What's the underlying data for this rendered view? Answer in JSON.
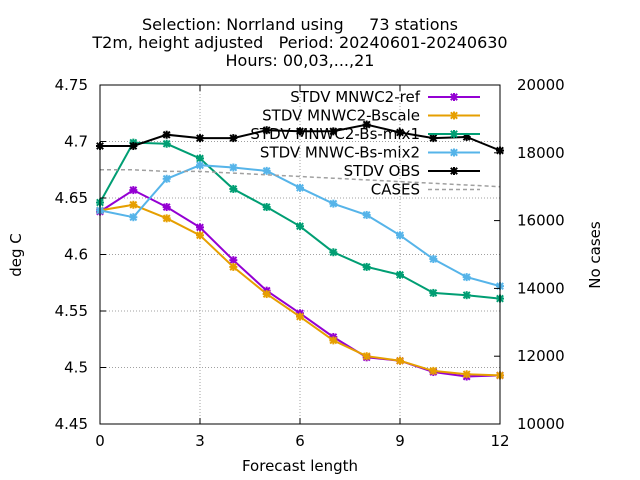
{
  "chart_data": {
    "type": "line",
    "title_lines": [
      "Selection: Norrland using     73 stations",
      "T2m, height adjusted   Period: 20240601-20240630",
      "Hours: 00,03,...,21"
    ],
    "xlabel": "Forecast length",
    "ylabel": "deg C",
    "y2label": "No cases",
    "xlim": [
      0,
      12
    ],
    "ylim": [
      4.45,
      4.75
    ],
    "y2lim": [
      10000,
      20000
    ],
    "x_ticks": [
      0,
      3,
      6,
      9,
      12
    ],
    "y_ticks": [
      4.45,
      4.5,
      4.55,
      4.6,
      4.65,
      4.7,
      4.75
    ],
    "y_tick_labels": [
      "4.45",
      "4.5",
      "4.55",
      "4.6",
      "4.65",
      "4.7",
      "4.75"
    ],
    "y2_ticks": [
      10000,
      12000,
      14000,
      16000,
      18000,
      20000
    ],
    "grid": true,
    "legend_position": "top-right",
    "x": [
      0,
      1,
      2,
      3,
      4,
      5,
      6,
      7,
      8,
      9,
      10,
      11,
      12
    ],
    "series": [
      {
        "name": "STDV MNWC2-ref",
        "color": "#9400d3",
        "axis": "y",
        "values": [
          4.638,
          4.657,
          4.642,
          4.624,
          4.595,
          4.568,
          4.548,
          4.527,
          4.509,
          4.506,
          4.496,
          4.492,
          4.493
        ]
      },
      {
        "name": "STDV MNWC2-Bscale",
        "color": "#e69f00",
        "axis": "y",
        "values": [
          4.639,
          4.644,
          4.632,
          4.617,
          4.589,
          4.565,
          4.545,
          4.524,
          4.51,
          4.506,
          4.497,
          4.494,
          4.493
        ]
      },
      {
        "name": "STDV MNWC2-Bs-mix1",
        "color": "#009e73",
        "axis": "y",
        "values": [
          4.646,
          4.699,
          4.698,
          4.685,
          4.658,
          4.642,
          4.625,
          4.602,
          4.589,
          4.582,
          4.566,
          4.564,
          4.561
        ]
      },
      {
        "name": "STDV MNWC-Bs-mix2",
        "color": "#56b4e9",
        "axis": "y",
        "values": [
          4.639,
          4.633,
          4.667,
          4.679,
          4.677,
          4.674,
          4.659,
          4.645,
          4.635,
          4.617,
          4.596,
          4.58,
          4.572
        ]
      },
      {
        "name": "STDV OBS",
        "color": "#000000",
        "axis": "y",
        "values": [
          4.696,
          4.696,
          4.706,
          4.703,
          4.703,
          4.71,
          4.709,
          4.709,
          4.715,
          4.708,
          4.703,
          4.704,
          4.692
        ]
      },
      {
        "name": "CASES",
        "color": "#a0a0a0",
        "axis": "y2",
        "dashed": true,
        "values": [
          17500,
          17500,
          17450,
          17450,
          17400,
          17350,
          17300,
          17250,
          17200,
          17150,
          17100,
          17050,
          17000
        ]
      }
    ]
  }
}
